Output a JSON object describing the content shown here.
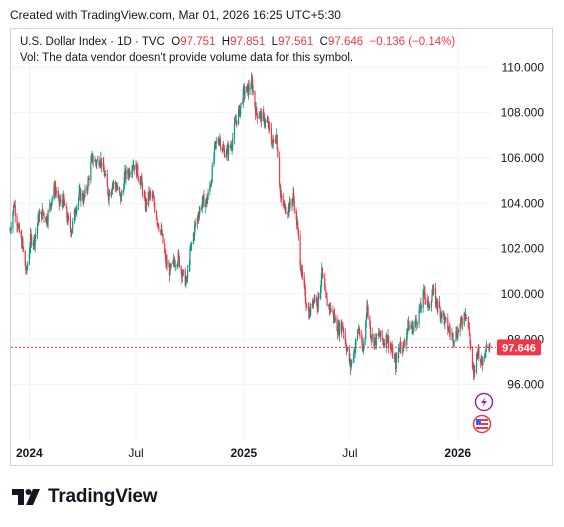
{
  "caption": "Created with TradingView.com, Mar 01, 2026 16:25 UTC+5:30",
  "legend": {
    "symbol": "U.S. Dollar Index · 1D · TVC",
    "o_label": "O",
    "o_value": "97.751",
    "h_label": "H",
    "h_value": "97.851",
    "l_label": "L",
    "l_value": "97.561",
    "c_label": "C",
    "c_value": "97.646",
    "change": "−0.136 (−0.14%)",
    "volume_note": "Vol: The data vendor doesn't provide volume data for this symbol."
  },
  "price_tag": "97.646",
  "footer": {
    "brand": "TradingView",
    "logo_icon": "tradingview-logo-icon"
  },
  "colors": {
    "up": "#089981",
    "down": "#f23645",
    "grid": "#f0f3fa",
    "text": "#131722",
    "tag": "#f23645"
  },
  "chart_data": {
    "type": "candlestick",
    "y_ticks": [
      "110.000",
      "108.000",
      "106.000",
      "104.000",
      "102.000",
      "100.000",
      "98.000",
      "96.000"
    ],
    "x_ticks": [
      "2024",
      "Jul",
      "2025",
      "Jul",
      "2026"
    ],
    "ylim": [
      94.0,
      110.5
    ],
    "last_close": 97.646,
    "closes": [
      {
        "d": "2023-11-29",
        "v": 102.8
      },
      {
        "d": "2023-12-06",
        "v": 104.0
      },
      {
        "d": "2023-12-13",
        "v": 102.9
      },
      {
        "d": "2023-12-20",
        "v": 102.2
      },
      {
        "d": "2023-12-27",
        "v": 100.9
      },
      {
        "d": "2024-01-03",
        "v": 102.4
      },
      {
        "d": "2024-01-10",
        "v": 102.4
      },
      {
        "d": "2024-01-17",
        "v": 103.4
      },
      {
        "d": "2024-01-24",
        "v": 103.6
      },
      {
        "d": "2024-01-31",
        "v": 103.3
      },
      {
        "d": "2024-02-07",
        "v": 104.1
      },
      {
        "d": "2024-02-14",
        "v": 104.7
      },
      {
        "d": "2024-02-21",
        "v": 104.0
      },
      {
        "d": "2024-02-28",
        "v": 104.1
      },
      {
        "d": "2024-03-06",
        "v": 103.3
      },
      {
        "d": "2024-03-13",
        "v": 102.8
      },
      {
        "d": "2024-03-20",
        "v": 103.8
      },
      {
        "d": "2024-03-27",
        "v": 104.4
      },
      {
        "d": "2024-04-03",
        "v": 104.2
      },
      {
        "d": "2024-04-10",
        "v": 104.9
      },
      {
        "d": "2024-04-17",
        "v": 106.0
      },
      {
        "d": "2024-04-24",
        "v": 105.8
      },
      {
        "d": "2024-05-01",
        "v": 106.0
      },
      {
        "d": "2024-05-08",
        "v": 105.3
      },
      {
        "d": "2024-05-15",
        "v": 104.4
      },
      {
        "d": "2024-05-22",
        "v": 104.9
      },
      {
        "d": "2024-05-29",
        "v": 104.7
      },
      {
        "d": "2024-06-05",
        "v": 104.2
      },
      {
        "d": "2024-06-12",
        "v": 105.2
      },
      {
        "d": "2024-06-19",
        "v": 105.4
      },
      {
        "d": "2024-06-26",
        "v": 105.8
      },
      {
        "d": "2024-07-03",
        "v": 105.4
      },
      {
        "d": "2024-07-10",
        "v": 104.9
      },
      {
        "d": "2024-07-17",
        "v": 103.9
      },
      {
        "d": "2024-07-24",
        "v": 104.4
      },
      {
        "d": "2024-07-31",
        "v": 104.1
      },
      {
        "d": "2024-08-07",
        "v": 103.2
      },
      {
        "d": "2024-08-14",
        "v": 102.6
      },
      {
        "d": "2024-08-21",
        "v": 101.4
      },
      {
        "d": "2024-08-28",
        "v": 101.0
      },
      {
        "d": "2024-09-04",
        "v": 101.4
      },
      {
        "d": "2024-09-11",
        "v": 101.6
      },
      {
        "d": "2024-09-18",
        "v": 100.9
      },
      {
        "d": "2024-09-25",
        "v": 100.5
      },
      {
        "d": "2024-10-02",
        "v": 101.9
      },
      {
        "d": "2024-10-09",
        "v": 102.9
      },
      {
        "d": "2024-10-16",
        "v": 103.6
      },
      {
        "d": "2024-10-23",
        "v": 104.1
      },
      {
        "d": "2024-10-30",
        "v": 104.1
      },
      {
        "d": "2024-11-06",
        "v": 105.0
      },
      {
        "d": "2024-11-13",
        "v": 106.5
      },
      {
        "d": "2024-11-20",
        "v": 106.9
      },
      {
        "d": "2024-11-27",
        "v": 106.3
      },
      {
        "d": "2024-12-04",
        "v": 106.3
      },
      {
        "d": "2024-12-11",
        "v": 106.6
      },
      {
        "d": "2024-12-18",
        "v": 107.6
      },
      {
        "d": "2024-12-25",
        "v": 108.1
      },
      {
        "d": "2025-01-01",
        "v": 108.9
      },
      {
        "d": "2025-01-08",
        "v": 109.0
      },
      {
        "d": "2025-01-15",
        "v": 109.3
      },
      {
        "d": "2025-01-22",
        "v": 108.0
      },
      {
        "d": "2025-01-29",
        "v": 107.9
      },
      {
        "d": "2025-02-05",
        "v": 107.7
      },
      {
        "d": "2025-02-12",
        "v": 107.4
      },
      {
        "d": "2025-02-19",
        "v": 106.6
      },
      {
        "d": "2025-02-26",
        "v": 107.0
      },
      {
        "d": "2025-03-05",
        "v": 104.2
      },
      {
        "d": "2025-03-12",
        "v": 103.8
      },
      {
        "d": "2025-03-19",
        "v": 103.8
      },
      {
        "d": "2025-03-26",
        "v": 104.3
      },
      {
        "d": "2025-04-02",
        "v": 103.0
      },
      {
        "d": "2025-04-09",
        "v": 101.0
      },
      {
        "d": "2025-04-16",
        "v": 99.8
      },
      {
        "d": "2025-04-23",
        "v": 99.1
      },
      {
        "d": "2025-04-30",
        "v": 99.9
      },
      {
        "d": "2025-05-07",
        "v": 99.6
      },
      {
        "d": "2025-05-14",
        "v": 100.9
      },
      {
        "d": "2025-05-21",
        "v": 99.7
      },
      {
        "d": "2025-05-28",
        "v": 99.4
      },
      {
        "d": "2025-06-04",
        "v": 99.0
      },
      {
        "d": "2025-06-11",
        "v": 98.4
      },
      {
        "d": "2025-06-18",
        "v": 98.7
      },
      {
        "d": "2025-06-25",
        "v": 97.7
      },
      {
        "d": "2025-07-02",
        "v": 96.8
      },
      {
        "d": "2025-07-09",
        "v": 97.6
      },
      {
        "d": "2025-07-16",
        "v": 98.5
      },
      {
        "d": "2025-07-23",
        "v": 97.4
      },
      {
        "d": "2025-07-30",
        "v": 99.5
      },
      {
        "d": "2025-08-06",
        "v": 98.2
      },
      {
        "d": "2025-08-13",
        "v": 97.9
      },
      {
        "d": "2025-08-20",
        "v": 98.2
      },
      {
        "d": "2025-08-27",
        "v": 97.9
      },
      {
        "d": "2025-09-03",
        "v": 98.1
      },
      {
        "d": "2025-09-10",
        "v": 97.5
      },
      {
        "d": "2025-09-17",
        "v": 96.9
      },
      {
        "d": "2025-09-24",
        "v": 97.8
      },
      {
        "d": "2025-10-01",
        "v": 97.7
      },
      {
        "d": "2025-10-08",
        "v": 98.6
      },
      {
        "d": "2025-10-15",
        "v": 98.5
      },
      {
        "d": "2025-10-22",
        "v": 98.8
      },
      {
        "d": "2025-10-29",
        "v": 99.3
      },
      {
        "d": "2025-11-05",
        "v": 100.1
      },
      {
        "d": "2025-11-12",
        "v": 99.4
      },
      {
        "d": "2025-11-19",
        "v": 100.1
      },
      {
        "d": "2025-11-26",
        "v": 99.6
      },
      {
        "d": "2025-12-03",
        "v": 99.2
      },
      {
        "d": "2025-12-10",
        "v": 98.8
      },
      {
        "d": "2025-12-17",
        "v": 98.4
      },
      {
        "d": "2025-12-24",
        "v": 98.1
      },
      {
        "d": "2025-12-31",
        "v": 98.3
      },
      {
        "d": "2026-01-07",
        "v": 98.7
      },
      {
        "d": "2026-01-14",
        "v": 99.3
      },
      {
        "d": "2026-01-21",
        "v": 98.2
      },
      {
        "d": "2026-01-28",
        "v": 96.3
      },
      {
        "d": "2026-02-04",
        "v": 97.6
      },
      {
        "d": "2026-02-11",
        "v": 96.9
      },
      {
        "d": "2026-02-18",
        "v": 97.8
      },
      {
        "d": "2026-02-25",
        "v": 97.6
      }
    ]
  }
}
